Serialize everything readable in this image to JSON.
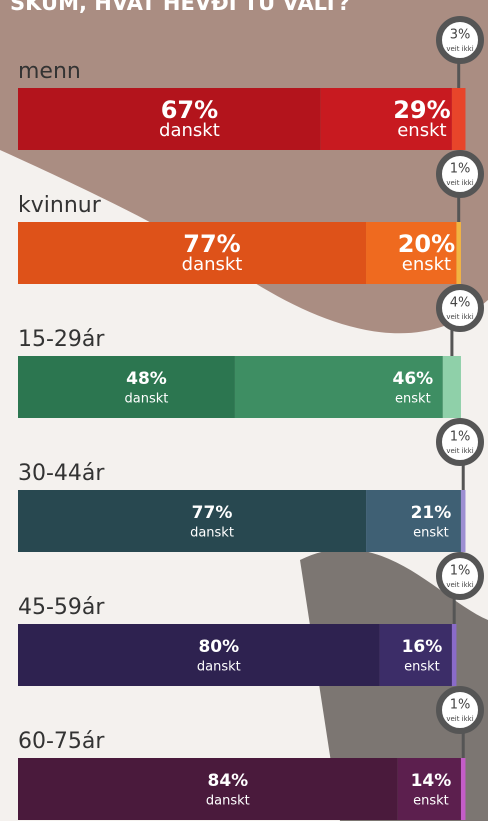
{
  "chart_data": {
    "type": "stacked-bar",
    "title": "SKÚM, HVAT HEVÐI TÚ VALT?",
    "categories": [
      "menn",
      "kvinnur",
      "15-29ár",
      "30-44ár",
      "45-59ár",
      "60-75ár"
    ],
    "xlim": [
      0,
      100
    ],
    "series": [
      {
        "name": "danskt",
        "values": [
          67,
          77,
          48,
          77,
          80,
          84
        ],
        "value_labels": [
          "67%",
          "77%",
          "48%",
          "77%",
          "80%",
          "84%"
        ],
        "colors": [
          "#b3141c",
          "#de5219",
          "#2c7650",
          "#284850",
          "#2e2250",
          "#4a1a3c"
        ]
      },
      {
        "name": "enskt",
        "values": [
          29,
          20,
          46,
          21,
          16,
          14
        ],
        "value_labels": [
          "29%",
          "20%",
          "46%",
          "21%",
          "16%",
          "14%"
        ],
        "colors": [
          "#c81a20",
          "#ef6a1f",
          "#3e8e63",
          "#3f6074",
          "#3c2d68",
          "#5c1f4e"
        ]
      },
      {
        "name": "veit ikki",
        "values": [
          3,
          1,
          4,
          1,
          1,
          1
        ],
        "value_labels": [
          "3%",
          "1%",
          "4%",
          "1%",
          "1%",
          "1%"
        ],
        "colors": [
          "#e8452a",
          "#f2b441",
          "#8fd0a9",
          "#9d8fd2",
          "#8a6bc9",
          "#c45dc8"
        ]
      }
    ]
  }
}
